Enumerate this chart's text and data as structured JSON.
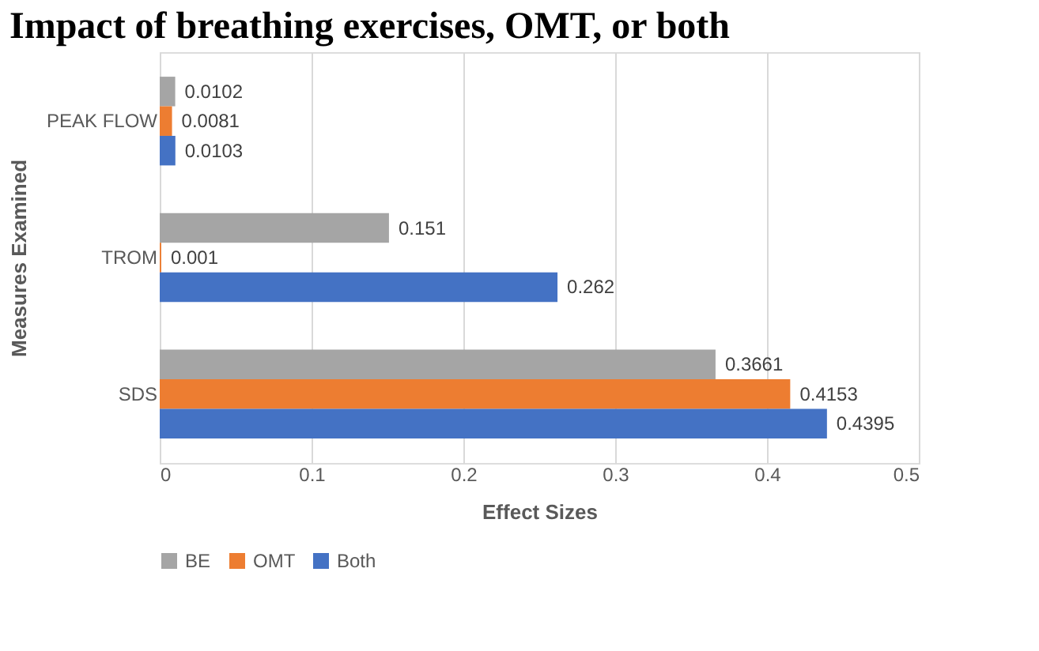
{
  "chart_data": {
    "type": "bar",
    "orientation": "horizontal",
    "title": "Impact of breathing exercises, OMT, or both",
    "xlabel": "Effect Sizes",
    "ylabel": "Measures Examined",
    "categories": [
      "PEAK FLOW",
      "TROM",
      "SDS"
    ],
    "series": [
      {
        "name": "BE",
        "color": "#a5a5a5",
        "values": [
          0.0102,
          0.151,
          0.3661
        ]
      },
      {
        "name": "OMT",
        "color": "#ed7d31",
        "values": [
          0.0081,
          0.001,
          0.4153
        ]
      },
      {
        "name": "Both",
        "color": "#4472c4",
        "values": [
          0.0103,
          0.262,
          0.4395
        ]
      }
    ],
    "xlim": [
      0,
      0.5
    ],
    "xticks": [
      0,
      0.1,
      0.2,
      0.3,
      0.4,
      0.5
    ],
    "grid": "x",
    "legend": "bottom",
    "data_labels": true
  }
}
